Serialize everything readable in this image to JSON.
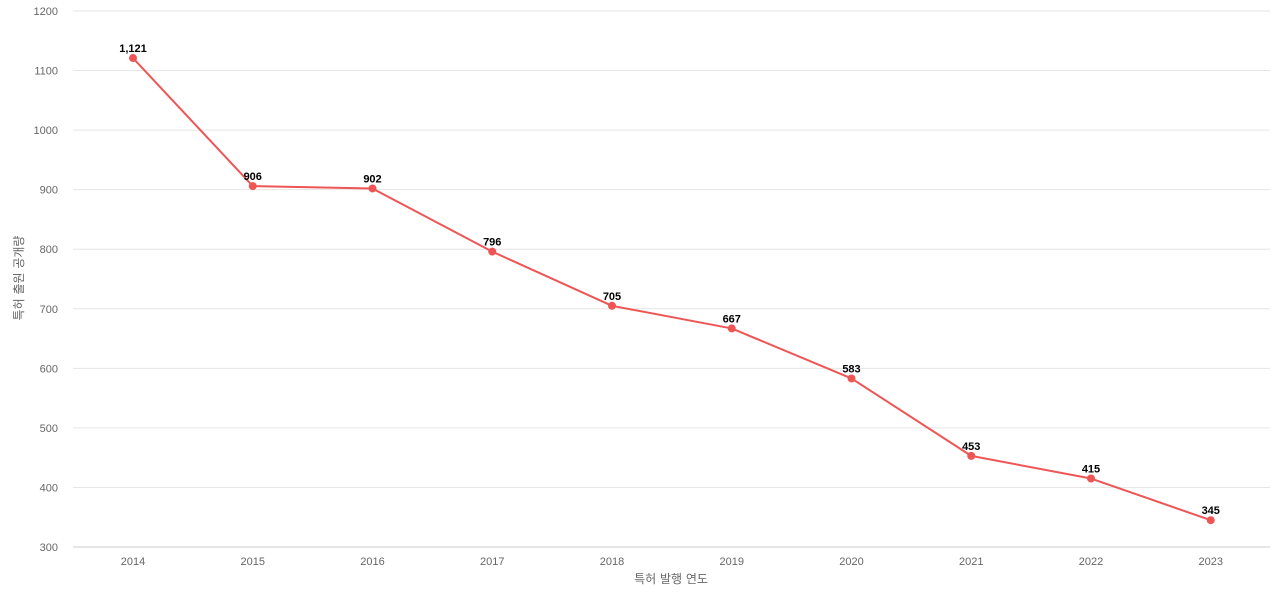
{
  "chart_data": {
    "type": "line",
    "title": "",
    "xlabel": "특허 발행 연도",
    "ylabel": "특허 출원 공개량",
    "categories": [
      "2014",
      "2015",
      "2016",
      "2017",
      "2018",
      "2019",
      "2020",
      "2021",
      "2022",
      "2023"
    ],
    "series": [
      {
        "values": [
          1121,
          906,
          902,
          796,
          705,
          667,
          583,
          453,
          415,
          345
        ],
        "labels": [
          "1,121",
          "906",
          "902",
          "796",
          "705",
          "667",
          "583",
          "453",
          "415",
          "345"
        ],
        "color": "#ee5555"
      }
    ],
    "ylim": [
      300,
      1200
    ],
    "yticks": [
      "300",
      "400",
      "500",
      "600",
      "700",
      "800",
      "900",
      "1000",
      "1100",
      "1200"
    ],
    "grid": true,
    "legend": "none"
  }
}
